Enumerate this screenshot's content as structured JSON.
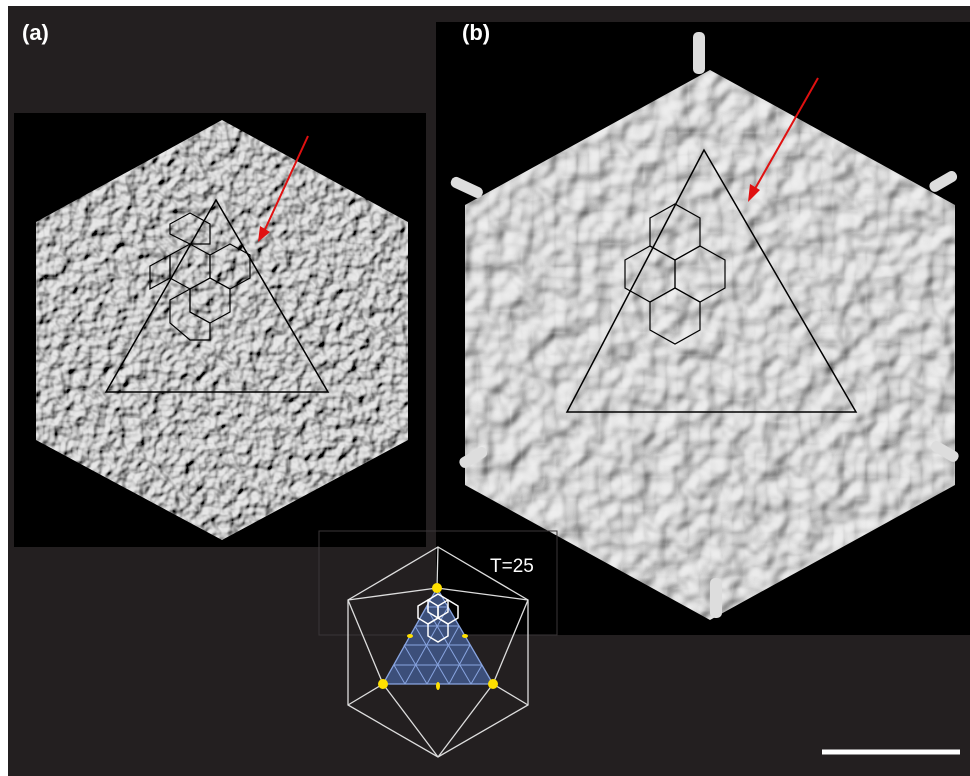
{
  "panels": [
    {
      "label": "(a)"
    },
    {
      "label": "(b)"
    }
  ],
  "inset": {
    "label": "T=25"
  }
}
